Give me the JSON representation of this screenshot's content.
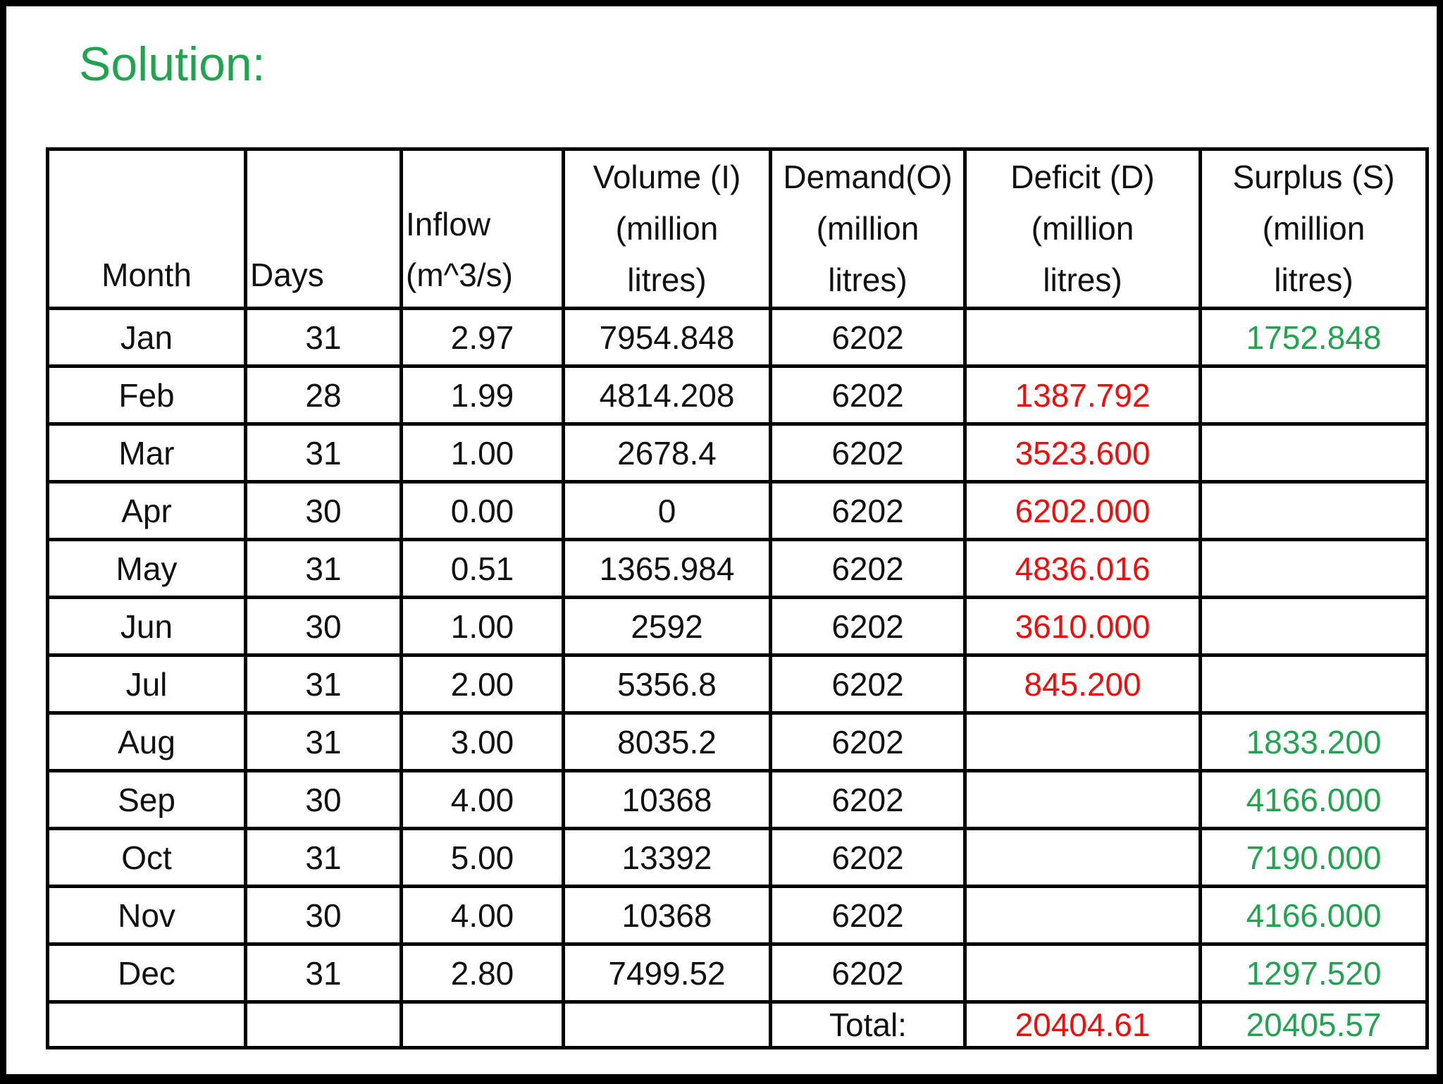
{
  "title": "Solution:",
  "colors": {
    "title_green": "#21a350",
    "surplus_green": "#21a350",
    "deficit_red": "#f20d0d",
    "border_black": "#000000",
    "background": "#ffffff"
  },
  "table": {
    "columns": [
      {
        "id": "month",
        "label": "Month"
      },
      {
        "id": "days",
        "label": "Days"
      },
      {
        "id": "inflow",
        "label": "Inflow\n(m^3/s)"
      },
      {
        "id": "volume",
        "label": "Volume (I)\n(million\nlitres)"
      },
      {
        "id": "demand",
        "label": "Demand(O)\n(million\nlitres)"
      },
      {
        "id": "deficit",
        "label": "Deficit (D)\n(million\nlitres)"
      },
      {
        "id": "surplus",
        "label": "Surplus (S)\n(million\nlitres)"
      }
    ],
    "rows": [
      {
        "month": "Jan",
        "days": "31",
        "inflow": "2.97",
        "volume": "7954.848",
        "demand": "6202",
        "deficit": "",
        "surplus": "1752.848"
      },
      {
        "month": "Feb",
        "days": "28",
        "inflow": "1.99",
        "volume": "4814.208",
        "demand": "6202",
        "deficit": "1387.792",
        "surplus": ""
      },
      {
        "month": "Mar",
        "days": "31",
        "inflow": "1.00",
        "volume": "2678.4",
        "demand": "6202",
        "deficit": "3523.600",
        "surplus": ""
      },
      {
        "month": "Apr",
        "days": "30",
        "inflow": "0.00",
        "volume": "0",
        "demand": "6202",
        "deficit": "6202.000",
        "surplus": ""
      },
      {
        "month": "May",
        "days": "31",
        "inflow": "0.51",
        "volume": "1365.984",
        "demand": "6202",
        "deficit": "4836.016",
        "surplus": ""
      },
      {
        "month": "Jun",
        "days": "30",
        "inflow": "1.00",
        "volume": "2592",
        "demand": "6202",
        "deficit": "3610.000",
        "surplus": ""
      },
      {
        "month": "Jul",
        "days": "31",
        "inflow": "2.00",
        "volume": "5356.8",
        "demand": "6202",
        "deficit": "845.200",
        "surplus": ""
      },
      {
        "month": "Aug",
        "days": "31",
        "inflow": "3.00",
        "volume": "8035.2",
        "demand": "6202",
        "deficit": "",
        "surplus": "1833.200"
      },
      {
        "month": "Sep",
        "days": "30",
        "inflow": "4.00",
        "volume": "10368",
        "demand": "6202",
        "deficit": "",
        "surplus": "4166.000"
      },
      {
        "month": "Oct",
        "days": "31",
        "inflow": "5.00",
        "volume": "13392",
        "demand": "6202",
        "deficit": "",
        "surplus": "7190.000"
      },
      {
        "month": "Nov",
        "days": "30",
        "inflow": "4.00",
        "volume": "10368",
        "demand": "6202",
        "deficit": "",
        "surplus": "4166.000"
      },
      {
        "month": "Dec",
        "days": "31",
        "inflow": "2.80",
        "volume": "7499.52",
        "demand": "6202",
        "deficit": "",
        "surplus": "1297.520"
      }
    ],
    "total": {
      "label": "Total:",
      "deficit": "20404.61",
      "surplus": "20405.57"
    }
  }
}
